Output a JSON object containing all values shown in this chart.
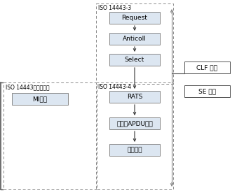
{
  "bg_color": "#ffffff",
  "box_fill": "#dce6f1",
  "box_edge": "#888888",
  "dash_color": "#888888",
  "right_box_fill": "#ffffff",
  "right_box_edge": "#555555",
  "arrow_color": "#333333",
  "line_color": "#888888",
  "iso3_label": "ISO 14443-3",
  "iso4_label": "ISO 14443-4",
  "iso_undef_label": "ISO 14443未定义流程",
  "boxes_col1": [
    "Request",
    "Anticoll",
    "Select"
  ],
  "boxes_col2": [
    "RATS",
    "第一条APDU命令",
    "后续命令"
  ],
  "box_mi": "MI流程",
  "right_labels": [
    "CLF 处理",
    "SE 处理"
  ],
  "font_size_box": 6.5,
  "font_size_label": 5.5,
  "font_size_right": 6.5
}
